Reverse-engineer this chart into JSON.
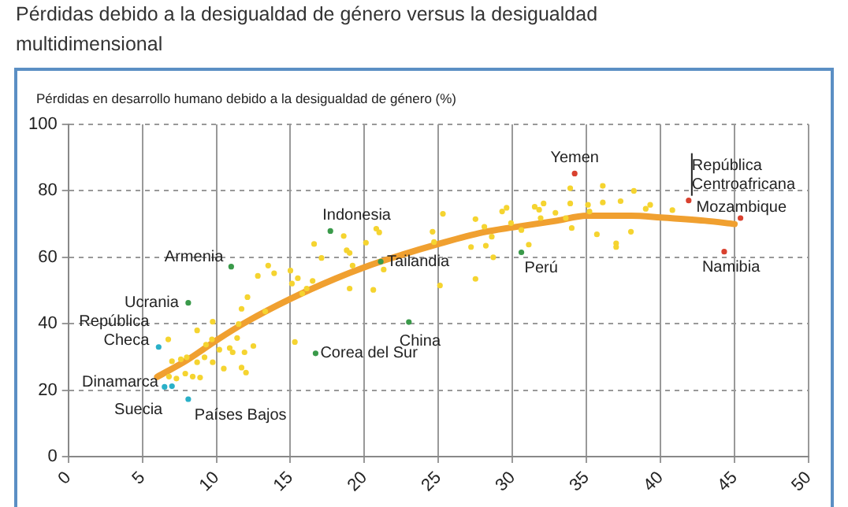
{
  "chart_data": {
    "type": "scatter",
    "title": "Pérdidas debido a la desigualdad de género versus la desigualdad multidimensional",
    "ylabel": "Pérdidas en desarrollo humano debido a la desigualdad de género (%)",
    "xlim": [
      0,
      50
    ],
    "xticks": [
      0,
      5,
      10,
      15,
      20,
      25,
      30,
      35,
      40,
      45,
      50
    ],
    "ylim": [
      0,
      100
    ],
    "yticks": [
      0,
      20,
      40,
      60,
      80,
      100
    ],
    "grid": true,
    "legend": false,
    "marker": "circle",
    "series": [
      {
        "color": "#f5d430",
        "x": [
          6.75,
          7.0,
          6.8,
          7.3,
          7.6,
          7.9,
          8.0,
          8.4,
          8.7,
          8.7,
          8.9,
          9.2,
          9.3,
          9.7,
          9.75,
          9.75,
          10.2,
          10.5,
          10.9,
          11.1,
          11.4,
          11.5,
          11.7,
          11.7,
          11.9,
          12.0,
          12.1,
          12.5,
          12.8,
          13.3,
          13.5,
          13.9,
          15.0,
          15.1,
          15.3,
          15.5,
          15.8,
          16.1,
          16.5,
          16.6,
          17.1,
          18.6,
          18.8,
          19.0,
          19.0,
          19.2,
          20.1,
          20.6,
          20.8,
          21.0,
          21.3,
          24.6,
          24.7,
          25.3,
          25.1,
          27.2,
          27.5,
          27.5,
          28.1,
          28.2,
          28.6,
          28.7,
          29.3,
          29.6,
          29.9,
          30.6,
          31.1,
          31.5,
          31.8,
          32.1,
          31.9,
          32.9,
          33.6,
          33.9,
          34.0,
          33.9,
          35.1,
          35.2,
          35.7,
          36.1,
          36.1,
          37.0,
          37.0,
          37.3,
          38.0,
          38.2,
          39.0,
          39.3,
          40.8
        ],
        "values": [
          35.3,
          28.7,
          24.1,
          23.5,
          29.3,
          25,
          29.9,
          24.1,
          38,
          28.4,
          23.8,
          29.9,
          33.7,
          35.3,
          28.4,
          40.6,
          32.2,
          26.5,
          32.7,
          31.4,
          35.7,
          39.9,
          44.5,
          26.8,
          31.4,
          25.3,
          48,
          33.3,
          54.4,
          43.7,
          57.5,
          55.2,
          56,
          52.1,
          34.5,
          53.7,
          49.1,
          50.6,
          52.9,
          64,
          59.8,
          66.4,
          62.1,
          61.3,
          50.6,
          57.5,
          64.4,
          50.2,
          68.6,
          67.5,
          56.3,
          67.7,
          64.6,
          73.1,
          51.5,
          63.1,
          71.5,
          53.5,
          69.2,
          63.5,
          66.2,
          60,
          73.8,
          74.9,
          70.3,
          68.2,
          63.8,
          75.2,
          74.3,
          76.2,
          71.8,
          73.4,
          71.8,
          80.8,
          68.8,
          76.2,
          75.8,
          73.8,
          66.9,
          81.5,
          76.5,
          64.2,
          63.1,
          76.9,
          67.7,
          80,
          74.6,
          75.8,
          74.2
        ]
      },
      {
        "color": "#3a9a4a",
        "x": [
          17.7,
          11.0,
          8.1,
          16.7,
          23.0,
          21.1,
          30.6
        ],
        "values": [
          67.9,
          57.2,
          46.3,
          31.1,
          40.5,
          58.7,
          61.5
        ]
      },
      {
        "color": "#2ab0c8",
        "x": [
          6.1,
          6.5,
          7.0,
          8.1
        ],
        "values": [
          33,
          21,
          21.2,
          17.3
        ]
      },
      {
        "color": "#d9412f",
        "x": [
          34.2,
          41.9,
          45.4,
          44.3
        ],
        "values": [
          85.2,
          77.1,
          71.8,
          61.7
        ]
      },
      {
        "type": "line",
        "color": "#f0a030",
        "marker": "none",
        "x": [
          6,
          8,
          10,
          12,
          15,
          18,
          20,
          22,
          25,
          28,
          30,
          33,
          35,
          38,
          40,
          43,
          45
        ],
        "values": [
          24,
          29,
          35,
          40.5,
          47.5,
          53.5,
          57,
          60,
          64,
          67.5,
          69,
          71,
          72.5,
          72.5,
          72,
          71,
          70
        ]
      }
    ],
    "annotations": [
      {
        "text": "Indonesia",
        "x": 17.7,
        "y": 67.9
      },
      {
        "text": "Armenia",
        "x": 11.0,
        "y": 57.2
      },
      {
        "text": "Ucrania",
        "x": 8.1,
        "y": 46.3
      },
      {
        "text": "Corea del Sur",
        "x": 16.7,
        "y": 31.1
      },
      {
        "text": "China",
        "x": 23.0,
        "y": 40.5
      },
      {
        "text": "Tailandia",
        "x": 21.1,
        "y": 58.7
      },
      {
        "text": "Perú",
        "x": 30.6,
        "y": 61.5
      },
      {
        "text": "República\nCheca",
        "x": 6.1,
        "y": 33
      },
      {
        "text": "Dinamarca",
        "x": 6.5,
        "y": 21
      },
      {
        "text": "Suecia",
        "x": 7.0,
        "y": 21.2
      },
      {
        "text": "Países Bajos",
        "x": 8.1,
        "y": 17.3
      },
      {
        "text": "Yemen",
        "x": 34.2,
        "y": 85.2
      },
      {
        "text": "República\nCentroafricana",
        "x": 41.9,
        "y": 77.1
      },
      {
        "text": "Mozambique",
        "x": 45.4,
        "y": 71.8
      },
      {
        "text": "Namibia",
        "x": 44.3,
        "y": 61.7
      }
    ]
  }
}
